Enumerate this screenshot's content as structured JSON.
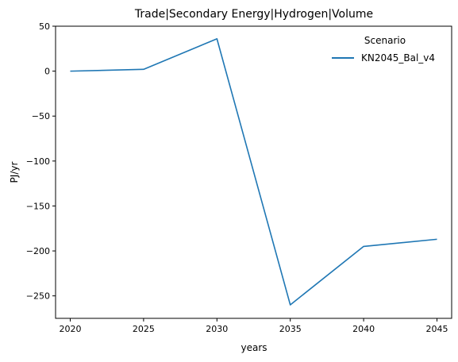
{
  "chart_data": {
    "type": "line",
    "title": "Trade|Secondary Energy|Hydrogen|Volume",
    "xlabel": "years",
    "ylabel": "PJ/yr",
    "x": [
      2020,
      2025,
      2030,
      2035,
      2040,
      2045
    ],
    "xlim": [
      2019,
      2046
    ],
    "ylim": [
      -275,
      50
    ],
    "xticks": [
      2020,
      2025,
      2030,
      2035,
      2040,
      2045
    ],
    "yticks": [
      50,
      0,
      -50,
      -100,
      -150,
      -200,
      -250
    ],
    "grid": false,
    "legend": {
      "title": "Scenario",
      "placement": "top-right"
    },
    "series": [
      {
        "name": "KN2045_Bal_v4",
        "color": "#1f77b4",
        "values": [
          0,
          2,
          36,
          -260,
          -195,
          -187
        ]
      }
    ]
  }
}
